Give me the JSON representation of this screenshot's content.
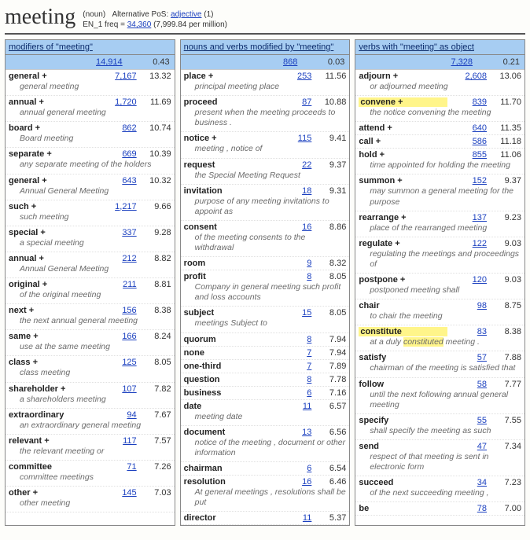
{
  "header": {
    "word": "meeting",
    "pos": "(noun)",
    "alt_pos_label": "Alternative PoS:",
    "alt_pos_link": "adjective",
    "alt_pos_count": "(1)",
    "freq_label": "EN_1 freq =",
    "freq_value": "34,360",
    "freq_per_million": "(7,999.84 per million)"
  },
  "columns": [
    {
      "title": "modifiers of \"meeting\"",
      "total_freq": "14,914",
      "total_score": "0.43",
      "entries": [
        {
          "word": "general",
          "plus": true,
          "freq": "7,167",
          "score": "13.32",
          "example": "general meeting"
        },
        {
          "word": "annual",
          "plus": true,
          "freq": "1,720",
          "score": "11.69",
          "example": "annual general meeting"
        },
        {
          "word": "board",
          "plus": true,
          "freq": "862",
          "score": "10.74",
          "example": "Board meeting"
        },
        {
          "word": "separate",
          "plus": true,
          "freq": "669",
          "score": "10.39",
          "example": "any separate meeting of the holders"
        },
        {
          "word": "general",
          "plus": true,
          "freq": "643",
          "score": "10.32",
          "example": "Annual General Meeting"
        },
        {
          "word": "such",
          "plus": true,
          "freq": "1,217",
          "score": "9.66",
          "example": "such meeting"
        },
        {
          "word": "special",
          "plus": true,
          "freq": "337",
          "score": "9.28",
          "example": "a special meeting"
        },
        {
          "word": "annual",
          "plus": true,
          "freq": "212",
          "score": "8.82",
          "example": "Annual General Meeting"
        },
        {
          "word": "original",
          "plus": true,
          "freq": "211",
          "score": "8.81",
          "example": "of the original meeting"
        },
        {
          "word": "next",
          "plus": true,
          "freq": "156",
          "score": "8.38",
          "example": "the next annual general meeting"
        },
        {
          "word": "same",
          "plus": true,
          "freq": "166",
          "score": "8.24",
          "example": "use at the same meeting"
        },
        {
          "word": "class",
          "plus": true,
          "freq": "125",
          "score": "8.05",
          "example": "class meeting"
        },
        {
          "word": "shareholder",
          "plus": true,
          "freq": "107",
          "score": "7.82",
          "example": "a shareholders meeting"
        },
        {
          "word": "extraordinary",
          "plus": false,
          "freq": "94",
          "score": "7.67",
          "example": "an extraordinary general meeting"
        },
        {
          "word": "relevant",
          "plus": true,
          "freq": "117",
          "score": "7.57",
          "example": "the relevant meeting or"
        },
        {
          "word": "committee",
          "plus": false,
          "freq": "71",
          "score": "7.26",
          "example": "committee meetings"
        },
        {
          "word": "other",
          "plus": true,
          "freq": "145",
          "score": "7.03",
          "example": "other meeting"
        }
      ]
    },
    {
      "title": "nouns and verbs modified by \"meeting\"",
      "total_freq": "868",
      "total_score": "0.03",
      "entries": [
        {
          "word": "place",
          "plus": true,
          "freq": "253",
          "score": "11.56",
          "example": "principal meeting place"
        },
        {
          "word": "proceed",
          "plus": false,
          "freq": "87",
          "score": "10.88",
          "example": "present when the meeting proceeds to business ."
        },
        {
          "word": "notice",
          "plus": true,
          "freq": "115",
          "score": "9.41",
          "example": "meeting , notice of"
        },
        {
          "word": "request",
          "plus": false,
          "freq": "22",
          "score": "9.37",
          "example": "the Special Meeting Request"
        },
        {
          "word": "invitation",
          "plus": false,
          "freq": "18",
          "score": "9.31",
          "example": "purpose of any meeting invitations to appoint as"
        },
        {
          "word": "consent",
          "plus": false,
          "freq": "16",
          "score": "8.86",
          "example": "of the meeting consents to the withdrawal"
        },
        {
          "word": "room",
          "plus": false,
          "freq": "9",
          "score": "8.32"
        },
        {
          "word": "profit",
          "plus": false,
          "freq": "8",
          "score": "8.05",
          "example": "Company in general meeting such profit and loss accounts"
        },
        {
          "word": "subject",
          "plus": false,
          "freq": "15",
          "score": "8.05",
          "example": "meetings Subject to"
        },
        {
          "word": "quorum",
          "plus": false,
          "freq": "8",
          "score": "7.94"
        },
        {
          "word": "none",
          "plus": false,
          "freq": "7",
          "score": "7.94"
        },
        {
          "word": "one-third",
          "plus": false,
          "freq": "7",
          "score": "7.89"
        },
        {
          "word": "question",
          "plus": false,
          "freq": "8",
          "score": "7.78"
        },
        {
          "word": "business",
          "plus": false,
          "freq": "6",
          "score": "7.16"
        },
        {
          "word": "date",
          "plus": false,
          "freq": "11",
          "score": "6.57",
          "example": "meeting date"
        },
        {
          "word": "document",
          "plus": false,
          "freq": "13",
          "score": "6.56",
          "example": "notice of the meeting , document or other information"
        },
        {
          "word": "chairman",
          "plus": false,
          "freq": "6",
          "score": "6.54"
        },
        {
          "word": "resolution",
          "plus": false,
          "freq": "16",
          "score": "6.46",
          "example": "At general meetings , resolutions shall be put"
        },
        {
          "word": "director",
          "plus": false,
          "freq": "11",
          "score": "5.37"
        }
      ]
    },
    {
      "title": "verbs with \"meeting\" as object",
      "total_freq": "7,328",
      "total_score": "0.21",
      "entries": [
        {
          "word": "adjourn",
          "plus": true,
          "freq": "2,608",
          "score": "13.06",
          "example": "or adjourned meeting"
        },
        {
          "word": "convene",
          "plus": true,
          "highlight": true,
          "freq": "839",
          "score": "11.70",
          "example": "the notice convening the meeting"
        },
        {
          "word": "attend",
          "plus": true,
          "freq": "640",
          "score": "11.35"
        },
        {
          "word": "call",
          "plus": true,
          "freq": "586",
          "score": "11.18"
        },
        {
          "word": "hold",
          "plus": true,
          "freq": "855",
          "score": "11.06",
          "example": "time appointed for holding the meeting"
        },
        {
          "word": "summon",
          "plus": true,
          "freq": "152",
          "score": "9.37",
          "example": "may summon a general meeting for the purpose"
        },
        {
          "word": "rearrange",
          "plus": true,
          "freq": "137",
          "score": "9.23",
          "example": "place of the rearranged meeting"
        },
        {
          "word": "regulate",
          "plus": true,
          "freq": "122",
          "score": "9.03",
          "example": "regulating the meetings and proceedings of"
        },
        {
          "word": "postpone",
          "plus": true,
          "freq": "120",
          "score": "9.03",
          "example": "postponed meeting shall"
        },
        {
          "word": "chair",
          "plus": false,
          "freq": "98",
          "score": "8.75",
          "example": "to chair the meeting"
        },
        {
          "word": "constitute",
          "plus": false,
          "highlight": true,
          "freq": "83",
          "score": "8.38",
          "example": "at a duly <hl>constituted</hl> meeting ."
        },
        {
          "word": "satisfy",
          "plus": false,
          "freq": "57",
          "score": "7.88",
          "example": "chairman of the meeting is satisfied that"
        },
        {
          "word": "follow",
          "plus": false,
          "freq": "58",
          "score": "7.77",
          "example": "until the next following annual general meeting"
        },
        {
          "word": "specify",
          "plus": false,
          "freq": "55",
          "score": "7.55",
          "example": "shall specify the meeting as such"
        },
        {
          "word": "send",
          "plus": false,
          "freq": "47",
          "score": "7.34",
          "example": "respect of that meeting is sent in electronic form"
        },
        {
          "word": "succeed",
          "plus": false,
          "freq": "34",
          "score": "7.23",
          "example": "of the next succeeding meeting ,"
        },
        {
          "word": "be",
          "plus": false,
          "freq": "78",
          "score": "7.00"
        }
      ]
    }
  ]
}
